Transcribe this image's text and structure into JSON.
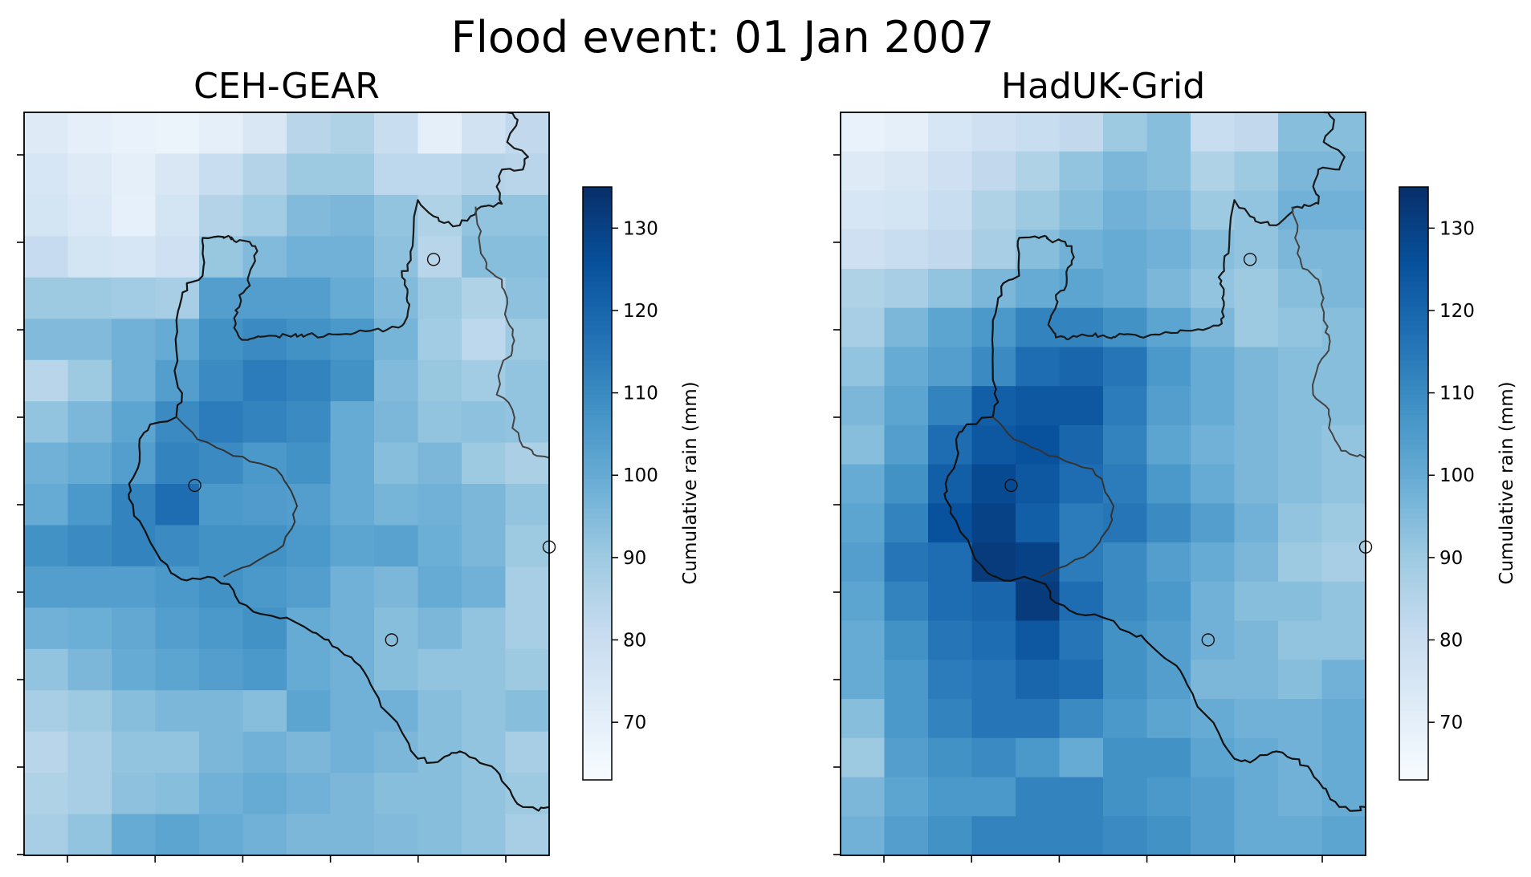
{
  "figure": {
    "title": "Flood event: 01 Jan 2007"
  },
  "chart_data": [
    {
      "type": "heatmap",
      "title": "CEH-GEAR",
      "colormap": "Blues",
      "vmin": 63,
      "vmax": 135,
      "colorbar": {
        "label": "Cumulative rain (mm)",
        "ticks": [
          70,
          80,
          90,
          100,
          110,
          120,
          130
        ]
      },
      "axis_ticks": "unlabelled",
      "gauges_shown": 4,
      "grid": [
        [
          72,
          70,
          68,
          67,
          70,
          74,
          84,
          86,
          80,
          70,
          77,
          82
        ],
        [
          75,
          72,
          70,
          74,
          80,
          85,
          90,
          90,
          83,
          83,
          85,
          84
        ],
        [
          76,
          73,
          69,
          76,
          85,
          89,
          95,
          96,
          92,
          86,
          92,
          92
        ],
        [
          81,
          76,
          75,
          78,
          91,
          95,
          98,
          98,
          93,
          84,
          94,
          94
        ],
        [
          90,
          90,
          89,
          88,
          104,
          104,
          104,
          100,
          95,
          90,
          86,
          93
        ],
        [
          95,
          95,
          98,
          100,
          108,
          110,
          108,
          106,
          97,
          89,
          83,
          90
        ],
        [
          84,
          90,
          98,
          104,
          110,
          114,
          112,
          108,
          95,
          91,
          89,
          92
        ],
        [
          92,
          96,
          102,
          110,
          114,
          112,
          110,
          100,
          96,
          92,
          93,
          92
        ],
        [
          98,
          100,
          104,
          112,
          110,
          106,
          108,
          100,
          94,
          96,
          90,
          87
        ],
        [
          100,
          106,
          112,
          118,
          106,
          105,
          104,
          100,
          97,
          98,
          96,
          92
        ],
        [
          108,
          110,
          112,
          110,
          108,
          108,
          106,
          102,
          103,
          99,
          96,
          90
        ],
        [
          104,
          104,
          104,
          106,
          108,
          106,
          104,
          98,
          96,
          100,
          98,
          88
        ],
        [
          98,
          99,
          101,
          104,
          106,
          108,
          100,
          98,
          94,
          96,
          92,
          88
        ],
        [
          92,
          96,
          100,
          102,
          104,
          106,
          100,
          98,
          94,
          92,
          92,
          90
        ],
        [
          88,
          90,
          94,
          96,
          96,
          94,
          102,
          98,
          98,
          94,
          92,
          94
        ],
        [
          84,
          88,
          92,
          92,
          96,
          98,
          96,
          98,
          96,
          94,
          92,
          88
        ],
        [
          86,
          88,
          93,
          94,
          98,
          100,
          98,
          96,
          94,
          94,
          92,
          90
        ],
        [
          88,
          92,
          100,
          102,
          100,
          98,
          96,
          96,
          95,
          94,
          92,
          88
        ]
      ]
    },
    {
      "type": "heatmap",
      "title": "HadUK-Grid",
      "colormap": "Blues",
      "vmin": 63,
      "vmax": 135,
      "colorbar": {
        "label": "Cumulative rain (mm)",
        "ticks": [
          70,
          80,
          90,
          100,
          110,
          120,
          130
        ]
      },
      "axis_ticks": "unlabelled",
      "gauges_shown": 4,
      "grid": [
        [
          68,
          70,
          75,
          78,
          80,
          82,
          90,
          94,
          80,
          82,
          94,
          94
        ],
        [
          72,
          74,
          78,
          82,
          86,
          92,
          96,
          94,
          86,
          90,
          96,
          96
        ],
        [
          75,
          76,
          80,
          86,
          90,
          94,
          98,
          96,
          90,
          92,
          98,
          98
        ],
        [
          78,
          80,
          82,
          88,
          94,
          98,
          100,
          98,
          94,
          92,
          96,
          96
        ],
        [
          86,
          88,
          92,
          96,
          100,
          102,
          100,
          96,
          92,
          90,
          94,
          96
        ],
        [
          88,
          96,
          102,
          106,
          112,
          112,
          108,
          102,
          96,
          90,
          92,
          94
        ],
        [
          92,
          100,
          104,
          110,
          118,
          120,
          116,
          106,
          100,
          96,
          94,
          94
        ],
        [
          96,
          102,
          112,
          122,
          124,
          124,
          114,
          104,
          100,
          96,
          94,
          94
        ],
        [
          94,
          104,
          118,
          124,
          126,
          120,
          112,
          102,
          98,
          96,
          94,
          92
        ],
        [
          100,
          108,
          122,
          128,
          124,
          118,
          114,
          106,
          100,
          96,
          94,
          92
        ],
        [
          102,
          112,
          126,
          130,
          122,
          114,
          116,
          110,
          104,
          98,
          92,
          90
        ],
        [
          104,
          116,
          118,
          132,
          130,
          114,
          110,
          104,
          100,
          96,
          90,
          88
        ],
        [
          102,
          112,
          118,
          120,
          132,
          118,
          110,
          106,
          98,
          94,
          94,
          92
        ],
        [
          100,
          108,
          116,
          118,
          124,
          116,
          108,
          104,
          98,
          96,
          92,
          92
        ],
        [
          100,
          106,
          114,
          116,
          120,
          118,
          108,
          104,
          96,
          96,
          94,
          98
        ],
        [
          94,
          106,
          112,
          116,
          116,
          110,
          106,
          102,
          100,
          98,
          98,
          100
        ],
        [
          90,
          104,
          108,
          110,
          106,
          100,
          108,
          108,
          102,
          100,
          98,
          100
        ],
        [
          96,
          102,
          106,
          106,
          112,
          112,
          108,
          106,
          104,
          100,
          98,
          100
        ],
        [
          98,
          104,
          108,
          112,
          112,
          112,
          110,
          108,
          104,
          100,
          100,
          102
        ]
      ]
    }
  ]
}
